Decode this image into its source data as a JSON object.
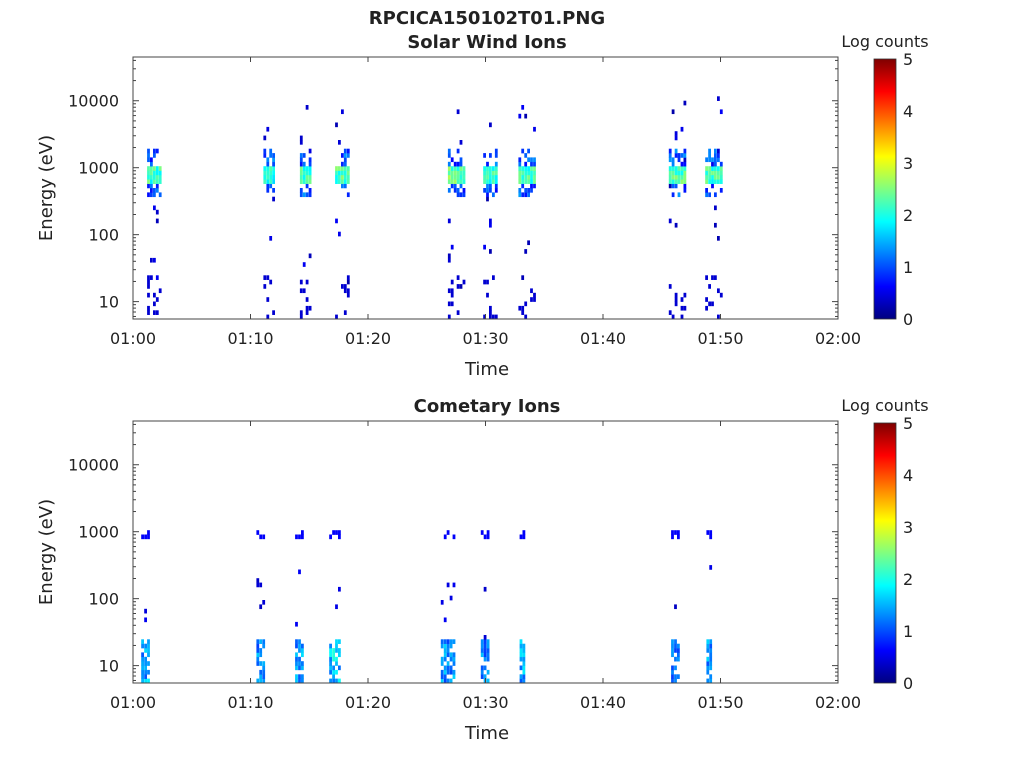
{
  "figure_title": "RPCICA150102T01.PNG",
  "colorbar_label": "Log counts",
  "colorbar_ticks": [
    "0",
    "1",
    "2",
    "3",
    "4",
    "5"
  ],
  "colormap": [
    "#00007f",
    "#0000ff",
    "#0080ff",
    "#00ffff",
    "#80ff80",
    "#ffff00",
    "#ff8000",
    "#ff0000",
    "#7f0000"
  ],
  "chart_data": [
    {
      "type": "heatmap",
      "title": "Solar Wind Ions",
      "xlabel": "Time",
      "ylabel": "Energy (eV)",
      "xticks": [
        "01:00",
        "01:10",
        "01:20",
        "01:30",
        "01:40",
        "01:50",
        "02:00"
      ],
      "xlim_minutes": [
        0,
        60
      ],
      "yticks": [
        "10",
        "100",
        "1000",
        "10000"
      ],
      "ylim_eV": [
        5.5,
        45000
      ],
      "yscale": "log",
      "zlim_log_counts": [
        0,
        5
      ],
      "bursts": [
        {
          "t": [
            1.2,
            2.3
          ],
          "peak_eV": 820,
          "peak_logc": 2.4
        },
        {
          "t": [
            11.1,
            12.1
          ],
          "peak_eV": 820,
          "peak_logc": 2.2
        },
        {
          "t": [
            14.2,
            15.1
          ],
          "peak_eV": 820,
          "peak_logc": 2.4
        },
        {
          "t": [
            17.2,
            18.4
          ],
          "peak_eV": 820,
          "peak_logc": 2.5
        },
        {
          "t": [
            26.8,
            28.2
          ],
          "peak_eV": 820,
          "peak_logc": 2.6
        },
        {
          "t": [
            29.8,
            31.0
          ],
          "peak_eV": 820,
          "peak_logc": 2.3
        },
        {
          "t": [
            32.8,
            34.2
          ],
          "peak_eV": 820,
          "peak_logc": 2.4
        },
        {
          "t": [
            45.6,
            46.9
          ],
          "peak_eV": 820,
          "peak_logc": 2.5
        },
        {
          "t": [
            48.7,
            50.0
          ],
          "peak_eV": 820,
          "peak_logc": 2.4
        }
      ],
      "low_energy": {
        "max_eV": 25,
        "logc": 0.4
      }
    },
    {
      "type": "heatmap",
      "title": "Cometary Ions",
      "xlabel": "Time",
      "ylabel": "Energy (eV)",
      "xticks": [
        "01:00",
        "01:10",
        "01:20",
        "01:30",
        "01:40",
        "01:50",
        "02:00"
      ],
      "xlim_minutes": [
        0,
        60
      ],
      "yticks": [
        "10",
        "100",
        "1000",
        "10000"
      ],
      "ylim_eV": [
        5.5,
        45000
      ],
      "yscale": "log",
      "zlim_log_counts": [
        0,
        5
      ],
      "bursts": [
        {
          "t": [
            0.7,
            1.4
          ],
          "peak_eV": 14,
          "peak_logc": 1.8
        },
        {
          "t": [
            10.5,
            11.2
          ],
          "peak_eV": 14,
          "peak_logc": 1.7
        },
        {
          "t": [
            13.8,
            14.5
          ],
          "peak_eV": 14,
          "peak_logc": 1.8
        },
        {
          "t": [
            16.7,
            17.6
          ],
          "peak_eV": 14,
          "peak_logc": 2.1
        },
        {
          "t": [
            26.2,
            27.4
          ],
          "peak_eV": 14,
          "peak_logc": 1.7
        },
        {
          "t": [
            29.6,
            30.3
          ],
          "peak_eV": 14,
          "peak_logc": 1.6
        },
        {
          "t": [
            32.9,
            33.3
          ],
          "peak_eV": 14,
          "peak_logc": 1.9
        },
        {
          "t": [
            45.8,
            46.4
          ],
          "peak_eV": 14,
          "peak_logc": 1.5
        },
        {
          "t": [
            48.8,
            49.3
          ],
          "peak_eV": 14,
          "peak_logc": 1.8
        }
      ],
      "high_energy": {
        "eV": 880,
        "logc": 0.6
      }
    }
  ]
}
